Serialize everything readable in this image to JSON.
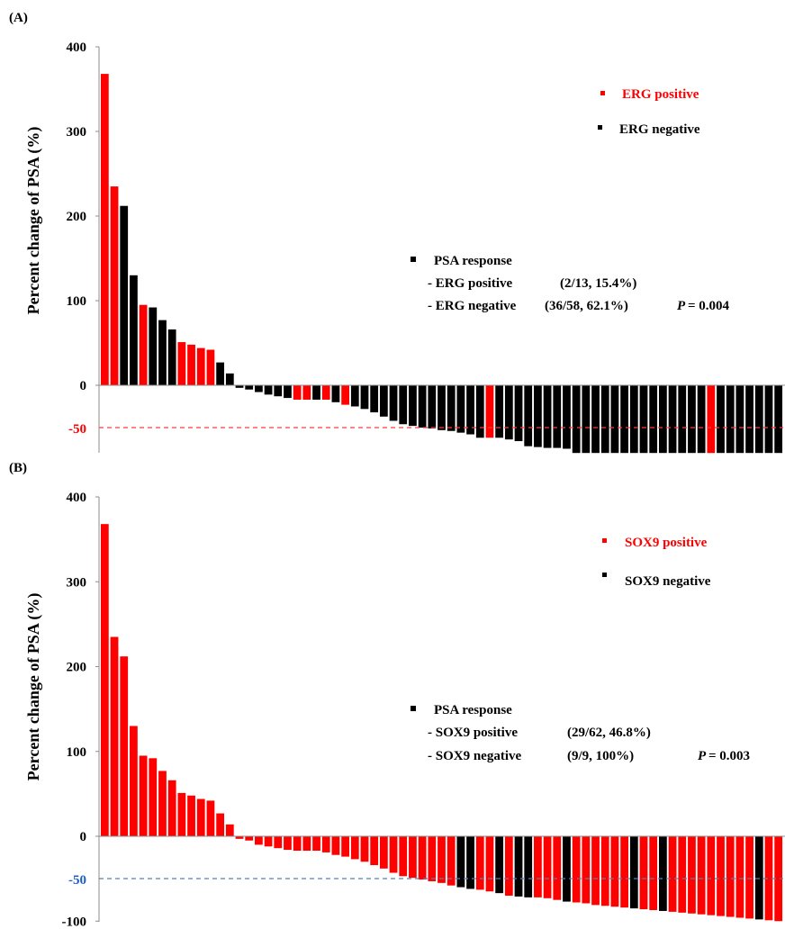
{
  "colors": {
    "positive": "#ff0000",
    "negative": "#000000",
    "cutoff_line_a": "#ff3b3b",
    "cutoff_line_b": "#4f81bd",
    "cutoff_label_a": "#ff0000",
    "cutoff_label_b": "#1f5fbf",
    "background": "#ffffff"
  },
  "chart_data": [
    {
      "type": "bar",
      "panel_label": "(A)",
      "ylabel": "Percent  change of  PSA  (%)",
      "ylim": [
        -80,
        400
      ],
      "yticks": [
        "400",
        "300",
        "200",
        "100",
        "0"
      ],
      "cutoff": {
        "value": -50,
        "label": "-50",
        "style": "dashed"
      },
      "grid": false,
      "legend_position": "top-right",
      "legend": [
        {
          "label": "ERG positive",
          "color": "#ff0000"
        },
        {
          "label": "ERG negative",
          "color": "#000000"
        }
      ],
      "annotation": {
        "title": "PSA response",
        "row1_label": "- ERG positive",
        "row1_value": "(2/13, 15.4%)",
        "row2_label": "- ERG negative",
        "row2_value": "(36/58, 62.1%)",
        "p_label": "P",
        "p_value": "= 0.004"
      },
      "values": [
        368,
        235,
        212,
        130,
        95,
        92,
        77,
        66,
        51,
        48,
        44,
        42,
        27,
        14,
        -3,
        -5,
        -8,
        -11,
        -13,
        -15,
        -17,
        -17,
        -17,
        -17,
        -20,
        -23,
        -25,
        -28,
        -32,
        -37,
        -42,
        -46,
        -48,
        -50,
        -51,
        -53,
        -54,
        -56,
        -58,
        -62,
        -62,
        -62,
        -64,
        -66,
        -72,
        -73,
        -74,
        -74,
        -75,
        -80,
        -80,
        -80,
        -80,
        -80,
        -80,
        -80,
        -80,
        -80,
        -80,
        -80,
        -80,
        -80,
        -80,
        -80,
        -80,
        -80,
        -80,
        -80,
        -80,
        -80,
        -80
      ],
      "groups": [
        "pos",
        "pos",
        "neg",
        "neg",
        "pos",
        "neg",
        "neg",
        "neg",
        "pos",
        "pos",
        "pos",
        "pos",
        "neg",
        "neg",
        "neg",
        "neg",
        "neg",
        "neg",
        "neg",
        "neg",
        "pos",
        "pos",
        "neg",
        "pos",
        "neg",
        "pos",
        "neg",
        "neg",
        "neg",
        "neg",
        "neg",
        "neg",
        "neg",
        "neg",
        "neg",
        "neg",
        "neg",
        "neg",
        "neg",
        "neg",
        "pos",
        "neg",
        "neg",
        "neg",
        "neg",
        "neg",
        "neg",
        "neg",
        "neg",
        "neg",
        "neg",
        "neg",
        "neg",
        "neg",
        "neg",
        "neg",
        "neg",
        "neg",
        "neg",
        "neg",
        "neg",
        "neg",
        "neg",
        "pos",
        "neg",
        "neg",
        "neg",
        "neg",
        "neg",
        "neg",
        "neg"
      ]
    },
    {
      "type": "bar",
      "panel_label": "(B)",
      "ylabel": "Percent change of  PSA  (%)",
      "ylim": [
        -100,
        400
      ],
      "yticks": [
        "400",
        "300",
        "200",
        "100",
        "0",
        "-100"
      ],
      "cutoff": {
        "value": -50,
        "label": "-50",
        "style": "dashed"
      },
      "grid": false,
      "legend_position": "top-right",
      "legend": [
        {
          "label": "SOX9 positive",
          "color": "#ff0000"
        },
        {
          "label": "SOX9 negative",
          "color": "#000000"
        }
      ],
      "annotation": {
        "title": "PSA response",
        "row1_label": "- SOX9 positive",
        "row1_value": "(29/62, 46.8%)",
        "row2_label": "- SOX9 negative",
        "row2_value": "(9/9, 100%)",
        "p_label": "P",
        "p_value": "= 0.003"
      },
      "values": [
        368,
        235,
        212,
        130,
        95,
        92,
        77,
        66,
        51,
        48,
        44,
        42,
        27,
        14,
        -3,
        -5,
        -10,
        -12,
        -14,
        -16,
        -17,
        -17,
        -17,
        -19,
        -22,
        -24,
        -27,
        -30,
        -34,
        -38,
        -43,
        -47,
        -49,
        -51,
        -53,
        -55,
        -58,
        -60,
        -62,
        -63,
        -65,
        -67,
        -70,
        -71,
        -72,
        -72,
        -73,
        -75,
        -77,
        -78,
        -79,
        -81,
        -82,
        -83,
        -84,
        -85,
        -86,
        -87,
        -88,
        -89,
        -90,
        -91,
        -92,
        -93,
        -94,
        -95,
        -96,
        -97,
        -98,
        -99,
        -100
      ],
      "groups": [
        "pos",
        "pos",
        "pos",
        "pos",
        "pos",
        "pos",
        "pos",
        "pos",
        "pos",
        "pos",
        "pos",
        "pos",
        "pos",
        "pos",
        "pos",
        "pos",
        "pos",
        "pos",
        "pos",
        "pos",
        "pos",
        "pos",
        "pos",
        "pos",
        "pos",
        "pos",
        "pos",
        "pos",
        "pos",
        "pos",
        "pos",
        "pos",
        "pos",
        "pos",
        "pos",
        "pos",
        "pos",
        "neg",
        "neg",
        "pos",
        "pos",
        "neg",
        "pos",
        "neg",
        "neg",
        "pos",
        "pos",
        "pos",
        "neg",
        "pos",
        "pos",
        "pos",
        "pos",
        "pos",
        "pos",
        "neg",
        "pos",
        "pos",
        "neg",
        "pos",
        "pos",
        "pos",
        "pos",
        "pos",
        "pos",
        "pos",
        "pos",
        "pos",
        "neg",
        "pos",
        "pos"
      ]
    }
  ]
}
